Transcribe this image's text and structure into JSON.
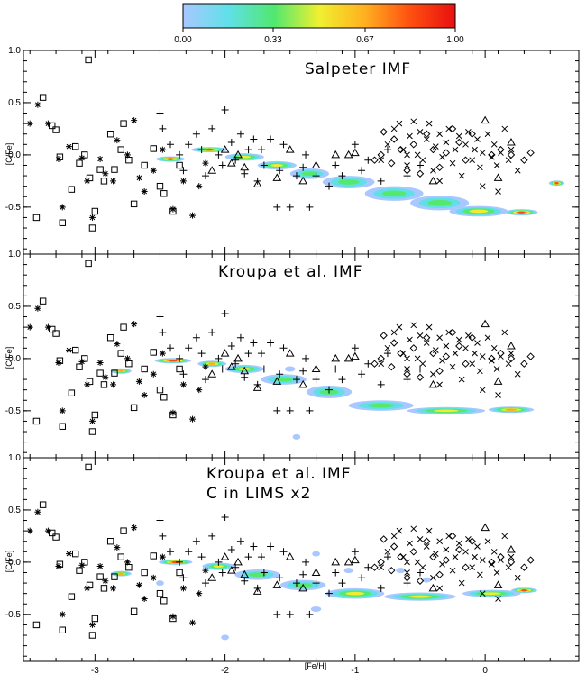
{
  "colorbar": {
    "ticks": [
      "0.00",
      "0.33",
      "0.67",
      "1.00"
    ],
    "tick_values": [
      0.0,
      0.33,
      0.67,
      1.0
    ],
    "colors": [
      "#a8c8ff",
      "#60e0e8",
      "#50e870",
      "#f0f030",
      "#ffb020",
      "#ff5010",
      "#e81010"
    ]
  },
  "chart_data": [
    {
      "type": "scatter",
      "title": "Salpeter IMF",
      "subtitle": "",
      "xlabel": "",
      "ylabel": "[C/Fe]",
      "xlim": [
        -3.55,
        0.72
      ],
      "ylim": [
        -0.95,
        1.0
      ],
      "x_ticks": [
        -3,
        -2,
        -1,
        0
      ],
      "x_tick_labels": [
        "",
        "",
        "",
        ""
      ],
      "y_ticks": [
        -0.5,
        0.0,
        0.5,
        1.0
      ],
      "y_tick_labels": [
        "-0.5",
        "0.0",
        "0.5",
        "1.0"
      ],
      "model_track": [
        {
          "x": -2.42,
          "y": -0.04,
          "w": 0.22,
          "h": 0.05,
          "level": 0.95
        },
        {
          "x": -2.12,
          "y": 0.05,
          "w": 0.28,
          "h": 0.05,
          "level": 0.9
        },
        {
          "x": -1.85,
          "y": -0.02,
          "w": 0.3,
          "h": 0.07,
          "level": 0.6
        },
        {
          "x": -1.6,
          "y": -0.1,
          "w": 0.3,
          "h": 0.08,
          "level": 0.55
        },
        {
          "x": -1.35,
          "y": -0.18,
          "w": 0.3,
          "h": 0.1,
          "level": 0.5
        },
        {
          "x": -1.05,
          "y": -0.26,
          "w": 0.4,
          "h": 0.12,
          "level": 0.45
        },
        {
          "x": -0.7,
          "y": -0.37,
          "w": 0.45,
          "h": 0.14,
          "level": 0.45
        },
        {
          "x": -0.35,
          "y": -0.46,
          "w": 0.45,
          "h": 0.14,
          "level": 0.5
        },
        {
          "x": -0.05,
          "y": -0.54,
          "w": 0.45,
          "h": 0.1,
          "level": 0.6
        },
        {
          "x": 0.28,
          "y": -0.55,
          "w": 0.25,
          "h": 0.06,
          "level": 0.85
        },
        {
          "x": 0.55,
          "y": -0.27,
          "w": 0.12,
          "h": 0.04,
          "level": 0.9
        }
      ]
    },
    {
      "type": "scatter",
      "title": "Kroupa et al. IMF",
      "subtitle": "",
      "xlabel": "",
      "ylabel": "[C/Fe]",
      "xlim": [
        -3.55,
        0.72
      ],
      "ylim": [
        -0.95,
        1.0
      ],
      "x_ticks": [
        -3,
        -2,
        -1,
        0
      ],
      "x_tick_labels": [
        "",
        "",
        "",
        ""
      ],
      "y_ticks": [
        -0.5,
        0.0,
        0.5,
        1.0
      ],
      "y_tick_labels": [
        "-0.5",
        "0.0",
        "0.5",
        "1.0"
      ],
      "model_track": [
        {
          "x": -2.8,
          "y": -0.12,
          "w": 0.16,
          "h": 0.05,
          "level": 0.8
        },
        {
          "x": -2.4,
          "y": -0.02,
          "w": 0.28,
          "h": 0.05,
          "level": 0.95
        },
        {
          "x": -2.1,
          "y": -0.05,
          "w": 0.22,
          "h": 0.06,
          "level": 0.7
        },
        {
          "x": -1.85,
          "y": -0.1,
          "w": 0.3,
          "h": 0.08,
          "level": 0.55
        },
        {
          "x": -1.55,
          "y": -0.2,
          "w": 0.35,
          "h": 0.1,
          "level": 0.45
        },
        {
          "x": -1.2,
          "y": -0.32,
          "w": 0.35,
          "h": 0.12,
          "level": 0.45
        },
        {
          "x": -0.8,
          "y": -0.45,
          "w": 0.5,
          "h": 0.1,
          "level": 0.5
        },
        {
          "x": -0.3,
          "y": -0.5,
          "w": 0.6,
          "h": 0.07,
          "level": 0.6
        },
        {
          "x": 0.2,
          "y": -0.49,
          "w": 0.35,
          "h": 0.06,
          "level": 0.8
        },
        {
          "x": -1.45,
          "y": -0.75,
          "w": 0.06,
          "h": 0.03,
          "level": 0.05
        },
        {
          "x": -1.5,
          "y": -0.1,
          "w": 0.08,
          "h": 0.03,
          "level": 0.05
        }
      ]
    },
    {
      "type": "scatter",
      "title": "Kroupa et al. IMF",
      "subtitle": "C in LIMS x2",
      "xlabel": "[Fe/H]",
      "ylabel": "[C/Fe]",
      "xlim": [
        -3.55,
        0.72
      ],
      "ylim": [
        -0.95,
        1.0
      ],
      "x_ticks": [
        -3,
        -2,
        -1,
        0
      ],
      "x_tick_labels": [
        "-3",
        "-2",
        "-1",
        "0"
      ],
      "y_ticks": [
        -0.5,
        0.0,
        0.5,
        1.0
      ],
      "y_tick_labels": [
        "-0.5",
        "0.0",
        "0.5",
        "1.0"
      ],
      "model_track": [
        {
          "x": -2.8,
          "y": -0.11,
          "w": 0.16,
          "h": 0.05,
          "level": 0.8
        },
        {
          "x": -2.38,
          "y": 0.0,
          "w": 0.26,
          "h": 0.05,
          "level": 0.95
        },
        {
          "x": -2.05,
          "y": -0.04,
          "w": 0.25,
          "h": 0.07,
          "level": 0.6
        },
        {
          "x": -1.75,
          "y": -0.12,
          "w": 0.35,
          "h": 0.1,
          "level": 0.5
        },
        {
          "x": -1.4,
          "y": -0.22,
          "w": 0.35,
          "h": 0.1,
          "level": 0.45
        },
        {
          "x": -1.0,
          "y": -0.3,
          "w": 0.45,
          "h": 0.1,
          "level": 0.55
        },
        {
          "x": -0.5,
          "y": -0.33,
          "w": 0.55,
          "h": 0.08,
          "level": 0.55
        },
        {
          "x": 0.05,
          "y": -0.3,
          "w": 0.45,
          "h": 0.07,
          "level": 0.65
        },
        {
          "x": 0.3,
          "y": -0.27,
          "w": 0.2,
          "h": 0.05,
          "level": 0.85
        },
        {
          "x": -2.0,
          "y": -0.72,
          "w": 0.06,
          "h": 0.03,
          "level": 0.05
        },
        {
          "x": -1.3,
          "y": -0.45,
          "w": 0.08,
          "h": 0.03,
          "level": 0.05
        },
        {
          "x": -1.05,
          "y": -0.08,
          "w": 0.07,
          "h": 0.03,
          "level": 0.05
        },
        {
          "x": -0.65,
          "y": -0.08,
          "w": 0.07,
          "h": 0.03,
          "level": 0.05
        },
        {
          "x": -0.45,
          "y": -0.17,
          "w": 0.06,
          "h": 0.03,
          "level": 0.05
        },
        {
          "x": -1.3,
          "y": 0.08,
          "w": 0.06,
          "h": 0.03,
          "level": 0.05
        },
        {
          "x": -2.5,
          "y": -0.2,
          "w": 0.06,
          "h": 0.03,
          "level": 0.05
        }
      ]
    }
  ],
  "observations": {
    "squares": [
      [
        -3.45,
        -0.6
      ],
      [
        -3.4,
        0.55
      ],
      [
        -3.33,
        0.28
      ],
      [
        -3.3,
        0.24
      ],
      [
        -3.27,
        -0.02
      ],
      [
        -3.25,
        -0.65
      ],
      [
        -3.18,
        -0.33
      ],
      [
        -3.15,
        0.08
      ],
      [
        -3.12,
        -0.08
      ],
      [
        -3.08,
        0.0
      ],
      [
        -3.05,
        0.91
      ],
      [
        -3.04,
        -0.22
      ],
      [
        -3.02,
        -0.7
      ],
      [
        -3.0,
        -0.54
      ],
      [
        -2.96,
        -0.14
      ],
      [
        -2.93,
        -0.25
      ],
      [
        -2.88,
        0.2
      ],
      [
        -2.85,
        -0.14
      ],
      [
        -2.8,
        0.05
      ],
      [
        -2.78,
        0.3
      ],
      [
        -2.74,
        -0.05
      ],
      [
        -2.7,
        -0.47
      ],
      [
        -2.62,
        -0.1
      ],
      [
        -2.55,
        0.06
      ],
      [
        -2.5,
        -0.3
      ],
      [
        -2.47,
        -0.37
      ],
      [
        -2.4,
        -0.54
      ],
      [
        -2.35,
        -0.1
      ]
    ],
    "stars": [
      [
        -3.5,
        0.3
      ],
      [
        -3.44,
        0.48
      ],
      [
        -3.36,
        0.3
      ],
      [
        -3.28,
        -0.04
      ],
      [
        -3.25,
        -0.5
      ],
      [
        -3.2,
        0.08
      ],
      [
        -3.1,
        -0.03
      ],
      [
        -3.06,
        -0.25
      ],
      [
        -3.02,
        -0.6
      ],
      [
        -2.96,
        -0.04
      ],
      [
        -2.92,
        -0.18
      ],
      [
        -2.86,
        -0.25
      ],
      [
        -2.83,
        0.14
      ],
      [
        -2.75,
        0.0
      ],
      [
        -2.7,
        0.33
      ],
      [
        -2.66,
        -0.22
      ],
      [
        -2.62,
        -0.35
      ],
      [
        -2.55,
        -0.15
      ],
      [
        -2.48,
        0.05
      ],
      [
        -2.4,
        -0.52
      ],
      [
        -2.32,
        -0.25
      ],
      [
        -2.25,
        -0.58
      ],
      [
        -2.2,
        -0.3
      ],
      [
        -2.15,
        -0.08
      ]
    ],
    "plus": [
      [
        -2.5,
        0.4
      ],
      [
        -2.48,
        0.25
      ],
      [
        -2.42,
        0.1
      ],
      [
        -2.35,
        0.0
      ],
      [
        -2.32,
        -0.15
      ],
      [
        -2.28,
        0.1
      ],
      [
        -2.22,
        0.2
      ],
      [
        -2.18,
        0.05
      ],
      [
        -2.15,
        -0.2
      ],
      [
        -2.1,
        0.25
      ],
      [
        -2.05,
        0.0
      ],
      [
        -2.02,
        -0.1
      ],
      [
        -2.0,
        0.43
      ],
      [
        -1.95,
        0.12
      ],
      [
        -1.92,
        -0.05
      ],
      [
        -1.88,
        0.2
      ],
      [
        -1.85,
        -0.18
      ],
      [
        -1.82,
        0.05
      ],
      [
        -1.78,
        0.15
      ],
      [
        -1.75,
        -0.25
      ],
      [
        -1.72,
        0.05
      ],
      [
        -1.7,
        -0.1
      ],
      [
        -1.65,
        0.15
      ],
      [
        -1.6,
        -0.5
      ],
      [
        -1.58,
        -0.15
      ],
      [
        -1.55,
        0.1
      ],
      [
        -1.5,
        -0.5
      ],
      [
        -1.45,
        -0.2
      ],
      [
        -1.4,
        -0.12
      ],
      [
        -1.38,
        0.0
      ],
      [
        -1.35,
        -0.5
      ],
      [
        -1.3,
        -0.2
      ],
      [
        -1.2,
        -0.3
      ],
      [
        -1.15,
        -0.1
      ],
      [
        -1.1,
        -0.2
      ],
      [
        -1.0,
        0.1
      ],
      [
        -0.95,
        -0.15
      ],
      [
        -0.9,
        -0.05
      ],
      [
        -0.8,
        -0.25
      ],
      [
        -0.75,
        0.05
      ],
      [
        -0.6,
        -0.2
      ],
      [
        -0.5,
        -0.1
      ]
    ],
    "triangles": [
      [
        -2.1,
        -0.15
      ],
      [
        -2.0,
        0.05
      ],
      [
        -1.95,
        -0.08
      ],
      [
        -1.9,
        0.0
      ],
      [
        -1.85,
        -0.12
      ],
      [
        -1.75,
        -0.28
      ],
      [
        -1.6,
        -0.22
      ],
      [
        -1.5,
        0.05
      ],
      [
        -1.4,
        -0.25
      ],
      [
        -1.3,
        -0.1
      ],
      [
        -1.15,
        0.0
      ],
      [
        -1.05,
        0.0
      ],
      [
        -1.0,
        0.02
      ],
      [
        -0.4,
        -0.25
      ],
      [
        0.0,
        0.33
      ],
      [
        0.1,
        -0.22
      ],
      [
        0.2,
        0.12
      ]
    ],
    "diamonds": [
      [
        -0.85,
        -0.05
      ],
      [
        -0.8,
        0.0
      ],
      [
        -0.78,
        0.22
      ],
      [
        -0.72,
        -0.08
      ],
      [
        -0.7,
        0.15
      ],
      [
        -0.65,
        0.05
      ],
      [
        -0.6,
        -0.15
      ],
      [
        -0.55,
        0.1
      ],
      [
        -0.5,
        -0.18
      ],
      [
        -0.45,
        0.2
      ],
      [
        -0.4,
        0.05
      ],
      [
        -0.35,
        -0.12
      ],
      [
        -0.3,
        0.02
      ],
      [
        -0.25,
        0.25
      ],
      [
        -0.2,
        0.12
      ],
      [
        -0.15,
        -0.05
      ],
      [
        -0.1,
        0.2
      ],
      [
        0.05,
        0.0
      ],
      [
        0.12,
        0.05
      ],
      [
        0.2,
        0.0
      ],
      [
        0.3,
        -0.05
      ],
      [
        0.35,
        0.02
      ]
    ],
    "crosses": [
      [
        -0.8,
        -0.05
      ],
      [
        -0.75,
        0.1
      ],
      [
        -0.7,
        0.25
      ],
      [
        -0.66,
        0.3
      ],
      [
        -0.63,
        0.05
      ],
      [
        -0.6,
        -0.1
      ],
      [
        -0.58,
        0.18
      ],
      [
        -0.55,
        0.32
      ],
      [
        -0.52,
        0.0
      ],
      [
        -0.5,
        0.22
      ],
      [
        -0.48,
        -0.05
      ],
      [
        -0.45,
        0.15
      ],
      [
        -0.43,
        0.3
      ],
      [
        -0.4,
        -0.15
      ],
      [
        -0.38,
        0.08
      ],
      [
        -0.35,
        0.2
      ],
      [
        -0.33,
        -0.02
      ],
      [
        -0.3,
        0.12
      ],
      [
        -0.28,
        0.25
      ],
      [
        -0.25,
        -0.08
      ],
      [
        -0.23,
        0.05
      ],
      [
        -0.2,
        0.18
      ],
      [
        -0.18,
        -0.2
      ],
      [
        -0.15,
        0.1
      ],
      [
        -0.13,
        0.22
      ],
      [
        -0.1,
        -0.05
      ],
      [
        -0.08,
        0.05
      ],
      [
        -0.06,
        0.15
      ],
      [
        -0.04,
        -0.12
      ],
      [
        -0.02,
        0.02
      ],
      [
        0.02,
        0.2
      ],
      [
        0.05,
        -0.02
      ],
      [
        0.07,
        0.1
      ],
      [
        0.09,
        -0.1
      ],
      [
        0.12,
        0.02
      ],
      [
        0.15,
        0.25
      ],
      [
        0.18,
        -0.05
      ],
      [
        0.2,
        0.05
      ],
      [
        0.25,
        -0.15
      ],
      [
        -0.02,
        -0.3
      ],
      [
        -0.35,
        -0.25
      ],
      [
        -0.6,
        0.0
      ],
      [
        0.1,
        -0.35
      ]
    ]
  }
}
